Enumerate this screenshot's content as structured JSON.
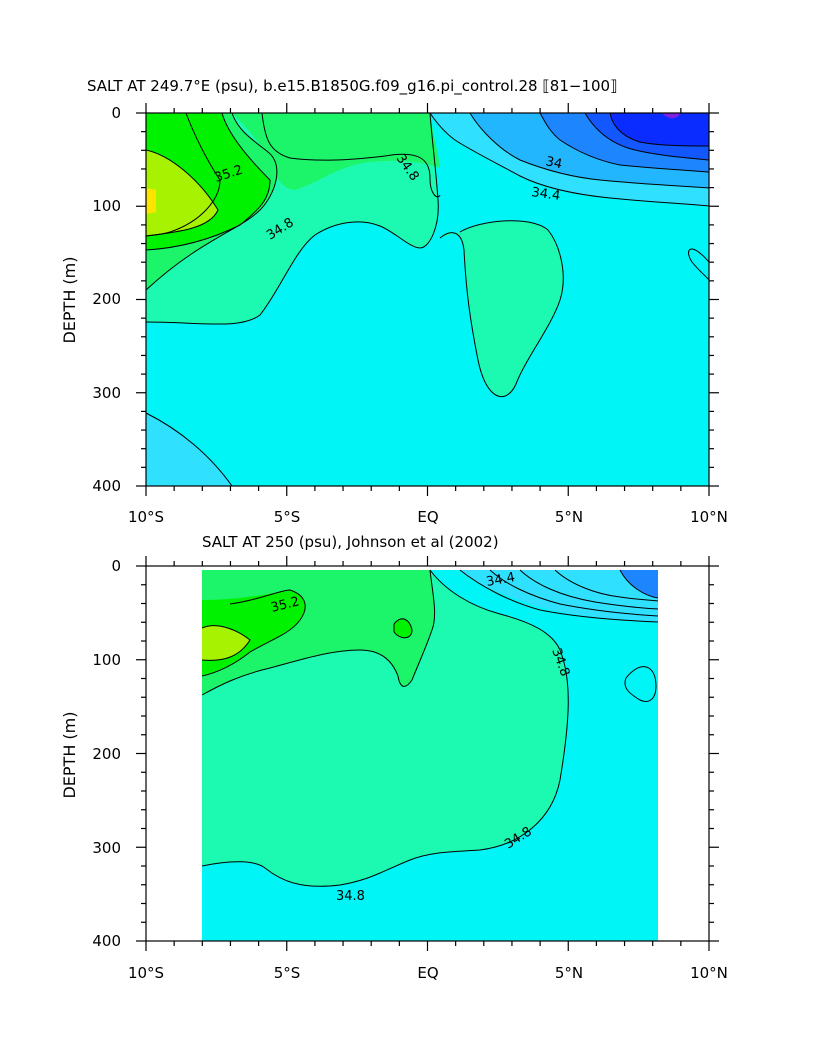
{
  "chart_data": [
    {
      "type": "contour",
      "title": "SALT AT 249.7°E (psu), b.e15.B1850G.f09_g16.pi_control.28 ⟦81−100⟧",
      "ylabel": "DEPTH (m)",
      "xlabel": "",
      "x_tick_labels": [
        "10°S",
        "5°S",
        "EQ",
        "5°N",
        "10°N"
      ],
      "x_range_deg": [
        -10,
        10
      ],
      "y_tick_labels": [
        "0",
        "100",
        "200",
        "300",
        "400"
      ],
      "y_range_m": [
        0,
        400
      ],
      "contour_labels": [
        {
          "text": "35.2",
          "x_deg": -7.4,
          "depth_m": 70
        },
        {
          "text": "34.8",
          "x_deg": -5.1,
          "depth_m": 122
        },
        {
          "text": "34.8",
          "x_deg": -0.8,
          "depth_m": 60
        },
        {
          "text": "34",
          "x_deg": 4.5,
          "depth_m": 48
        },
        {
          "text": "34.4",
          "x_deg": 4.3,
          "depth_m": 90
        }
      ],
      "colors": {
        "max_yellow": "#ffe400",
        "light_green": "#a6f200",
        "green": "#00f200",
        "green2": "#1cf56a",
        "green_cyan": "#1cfab2",
        "cyan": "#00f6f6",
        "light_blue": "#30e0ff",
        "sky": "#22b6ff",
        "blue1": "#1d86ff",
        "blue2": "#1357ff",
        "blue3": "#0b2cff",
        "min_violet": "#7d22e0"
      }
    },
    {
      "type": "contour",
      "title": "SALT AT 250 (psu), Johnson et al (2002)",
      "ylabel": "DEPTH (m)",
      "xlabel": "",
      "x_tick_labels": [
        "10°S",
        "5°S",
        "EQ",
        "5°N",
        "10°N"
      ],
      "x_range_deg": [
        -10,
        10
      ],
      "data_x_range_deg": [
        -8,
        8.2
      ],
      "y_tick_labels": [
        "0",
        "100",
        "200",
        "300",
        "400"
      ],
      "y_range_m": [
        0,
        400
      ],
      "contour_labels": [
        {
          "text": "35.2",
          "x_deg": -5.8,
          "depth_m": 42
        },
        {
          "text": "34.4",
          "x_deg": 2.8,
          "depth_m": 13
        },
        {
          "text": "34.8",
          "x_deg": 4.6,
          "depth_m": 108
        },
        {
          "text": "34.8",
          "x_deg": 3.4,
          "depth_m": 288
        },
        {
          "text": "34.8",
          "x_deg": -2.6,
          "depth_m": 351
        }
      ],
      "colors": {
        "light_green": "#a6f200",
        "green": "#00f200",
        "green2": "#1cf56a",
        "green_cyan": "#1cfab2",
        "cyan": "#00f6f6",
        "sky": "#22b6ff"
      }
    }
  ]
}
